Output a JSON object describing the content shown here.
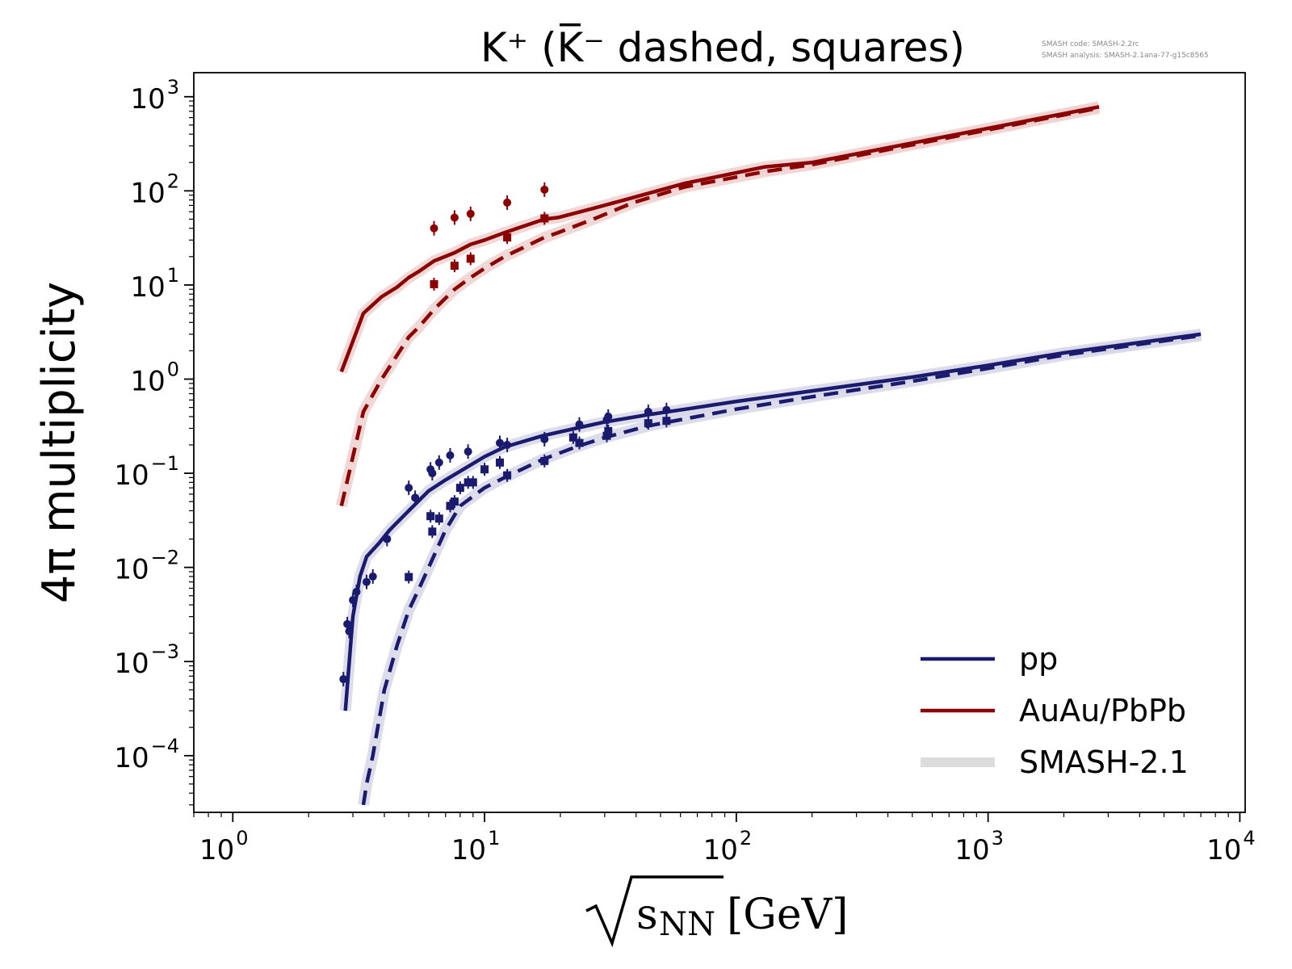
{
  "chart_data": {
    "type": "line",
    "title": "K⁺ (K̅⁻ dashed, squares)",
    "xlabel_radicand": "s",
    "xlabel_subscript": "NN",
    "xlabel_unit": "[GeV]",
    "ylabel": "4π multiplicity",
    "xscale": "log",
    "yscale": "log",
    "xlim": [
      0.7,
      10500
    ],
    "ylim": [
      2.5e-05,
      1800
    ],
    "x_ticks": [
      {
        "value": 1,
        "base": "10",
        "exp": "0"
      },
      {
        "value": 10,
        "base": "10",
        "exp": "1"
      },
      {
        "value": 100,
        "base": "10",
        "exp": "2"
      },
      {
        "value": 1000,
        "base": "10",
        "exp": "3"
      },
      {
        "value": 10000,
        "base": "10",
        "exp": "4"
      }
    ],
    "y_ticks": [
      {
        "value": 0.0001,
        "base": "10",
        "exp": "−4"
      },
      {
        "value": 0.001,
        "base": "10",
        "exp": "−3"
      },
      {
        "value": 0.01,
        "base": "10",
        "exp": "−2"
      },
      {
        "value": 0.1,
        "base": "10",
        "exp": "−1"
      },
      {
        "value": 1,
        "base": "10",
        "exp": "0"
      },
      {
        "value": 10,
        "base": "10",
        "exp": "1"
      },
      {
        "value": 100,
        "base": "10",
        "exp": "2"
      },
      {
        "value": 1000,
        "base": "10",
        "exp": "3"
      }
    ],
    "legend": {
      "placement": "lower-right",
      "entries": [
        {
          "label": "pp",
          "color": "#1a1a6e",
          "style": "solid"
        },
        {
          "label": "AuAu/PbPb",
          "color": "#8b0000",
          "style": "solid"
        },
        {
          "label": "SMASH-2.1",
          "color": "#dcdcdc",
          "style": "thick-band"
        }
      ]
    },
    "annotation": {
      "lines": [
        "SMASH code:      SMASH-2.2rc",
        "SMASH analysis:  SMASH-2.1ana-77-g15c8565"
      ]
    },
    "series": [
      {
        "name": "AuAu/PbPb K+ (SMASH)",
        "color": "#8b0000",
        "dash": "solid",
        "band_color": "#f0d0d0",
        "x": [
          2.7,
          3.3,
          3.9,
          4.5,
          5.0,
          5.5,
          6.3,
          7.6,
          8.8,
          10.0,
          12.0,
          17.3,
          19.6,
          27,
          39,
          62.4,
          130,
          200,
          2760
        ],
        "y": [
          1.2,
          5.0,
          7.5,
          9.5,
          12.0,
          14.0,
          18.0,
          22.0,
          27.0,
          30.0,
          36.0,
          50.0,
          52.0,
          65.0,
          85.0,
          120.0,
          180.0,
          200.0,
          780.0
        ]
      },
      {
        "name": "AuAu/PbPb K- (SMASH)",
        "color": "#8b0000",
        "dash": "dashed",
        "band_color": "#f0d0d0",
        "x": [
          2.7,
          3.3,
          3.9,
          4.5,
          5.0,
          5.5,
          6.3,
          7.6,
          8.8,
          10.0,
          12.0,
          17.3,
          19.6,
          27,
          39,
          62.4,
          130,
          200,
          2760
        ],
        "y": [
          0.045,
          0.45,
          1.0,
          1.8,
          2.8,
          3.6,
          5.5,
          9.0,
          12.0,
          15.0,
          20.0,
          32.0,
          36.0,
          50.0,
          75.0,
          110.0,
          160.0,
          190.0,
          760.0
        ]
      },
      {
        "name": "pp K+ (SMASH)",
        "color": "#1a1a6e",
        "dash": "solid",
        "band_color": "#d6d6e8",
        "x": [
          2.8,
          3.0,
          3.2,
          3.4,
          3.8,
          4.2,
          5.0,
          6.0,
          7.0,
          8.0,
          10.0,
          12.0,
          17.0,
          23.0,
          30.0,
          45.0,
          63.0,
          100.0,
          200.0,
          500.0,
          1000.0,
          2000.0,
          7000.0
        ],
        "y": [
          0.0003,
          0.003,
          0.008,
          0.013,
          0.018,
          0.025,
          0.04,
          0.065,
          0.085,
          0.105,
          0.15,
          0.19,
          0.25,
          0.3,
          0.35,
          0.42,
          0.48,
          0.58,
          0.75,
          1.05,
          1.4,
          1.9,
          3.0
        ]
      },
      {
        "name": "pp K- (SMASH)",
        "color": "#1a1a6e",
        "dash": "dashed",
        "band_color": "#d6d6e8",
        "x": [
          3.3,
          3.4,
          3.6,
          4.0,
          4.5,
          5.0,
          5.5,
          6.0,
          7.0,
          8.0,
          10.0,
          12.0,
          17.0,
          23.0,
          30.0,
          45.0,
          63.0,
          100.0,
          200.0,
          500.0,
          1000.0,
          2000.0,
          7000.0
        ],
        "y": [
          3e-05,
          5e-05,
          0.0001,
          0.0005,
          0.0015,
          0.0035,
          0.006,
          0.01,
          0.025,
          0.045,
          0.07,
          0.09,
          0.14,
          0.19,
          0.24,
          0.32,
          0.38,
          0.48,
          0.65,
          0.95,
          1.3,
          1.8,
          2.9
        ]
      }
    ],
    "data_points": [
      {
        "name": "AuAu/PbPb K+ data",
        "marker": "circle",
        "color": "#8b0000",
        "points": [
          [
            6.3,
            40
          ],
          [
            7.6,
            52
          ],
          [
            8.8,
            57
          ],
          [
            12.3,
            75
          ],
          [
            17.3,
            103
          ]
        ]
      },
      {
        "name": "AuAu/PbPb K- data",
        "marker": "square",
        "color": "#8b0000",
        "points": [
          [
            6.3,
            10.2
          ],
          [
            7.6,
            16
          ],
          [
            8.8,
            19
          ],
          [
            12.3,
            32
          ],
          [
            17.3,
            51
          ]
        ]
      },
      {
        "name": "pp K+ data",
        "marker": "circle",
        "color": "#1a1a6e",
        "points": [
          [
            2.75,
            0.00065
          ],
          [
            2.85,
            0.0025
          ],
          [
            2.9,
            0.0021
          ],
          [
            3.0,
            0.0045
          ],
          [
            3.1,
            0.0055
          ],
          [
            3.4,
            0.007
          ],
          [
            3.6,
            0.008
          ],
          [
            4.1,
            0.02
          ],
          [
            5.0,
            0.07
          ],
          [
            5.3,
            0.055
          ],
          [
            6.1,
            0.11
          ],
          [
            6.2,
            0.1
          ],
          [
            6.6,
            0.13
          ],
          [
            7.3,
            0.155
          ],
          [
            8.6,
            0.17
          ],
          [
            11.5,
            0.21
          ],
          [
            12.3,
            0.2
          ],
          [
            17.3,
            0.23
          ],
          [
            23.8,
            0.33
          ],
          [
            30.6,
            0.37
          ],
          [
            31.0,
            0.4
          ],
          [
            44.7,
            0.45
          ],
          [
            52.8,
            0.47
          ]
        ]
      },
      {
        "name": "pp K- data",
        "marker": "square",
        "color": "#1a1a6e",
        "points": [
          [
            5.0,
            0.0079
          ],
          [
            6.1,
            0.035
          ],
          [
            6.2,
            0.024
          ],
          [
            6.6,
            0.033
          ],
          [
            7.3,
            0.045
          ],
          [
            7.6,
            0.05
          ],
          [
            8.0,
            0.07
          ],
          [
            8.6,
            0.08
          ],
          [
            9.0,
            0.08
          ],
          [
            10.0,
            0.11
          ],
          [
            11.5,
            0.13
          ],
          [
            12.3,
            0.095
          ],
          [
            17.3,
            0.135
          ],
          [
            22.5,
            0.24
          ],
          [
            23.8,
            0.21
          ],
          [
            30.6,
            0.25
          ],
          [
            31.0,
            0.28
          ],
          [
            44.7,
            0.34
          ],
          [
            52.8,
            0.36
          ]
        ]
      }
    ]
  }
}
